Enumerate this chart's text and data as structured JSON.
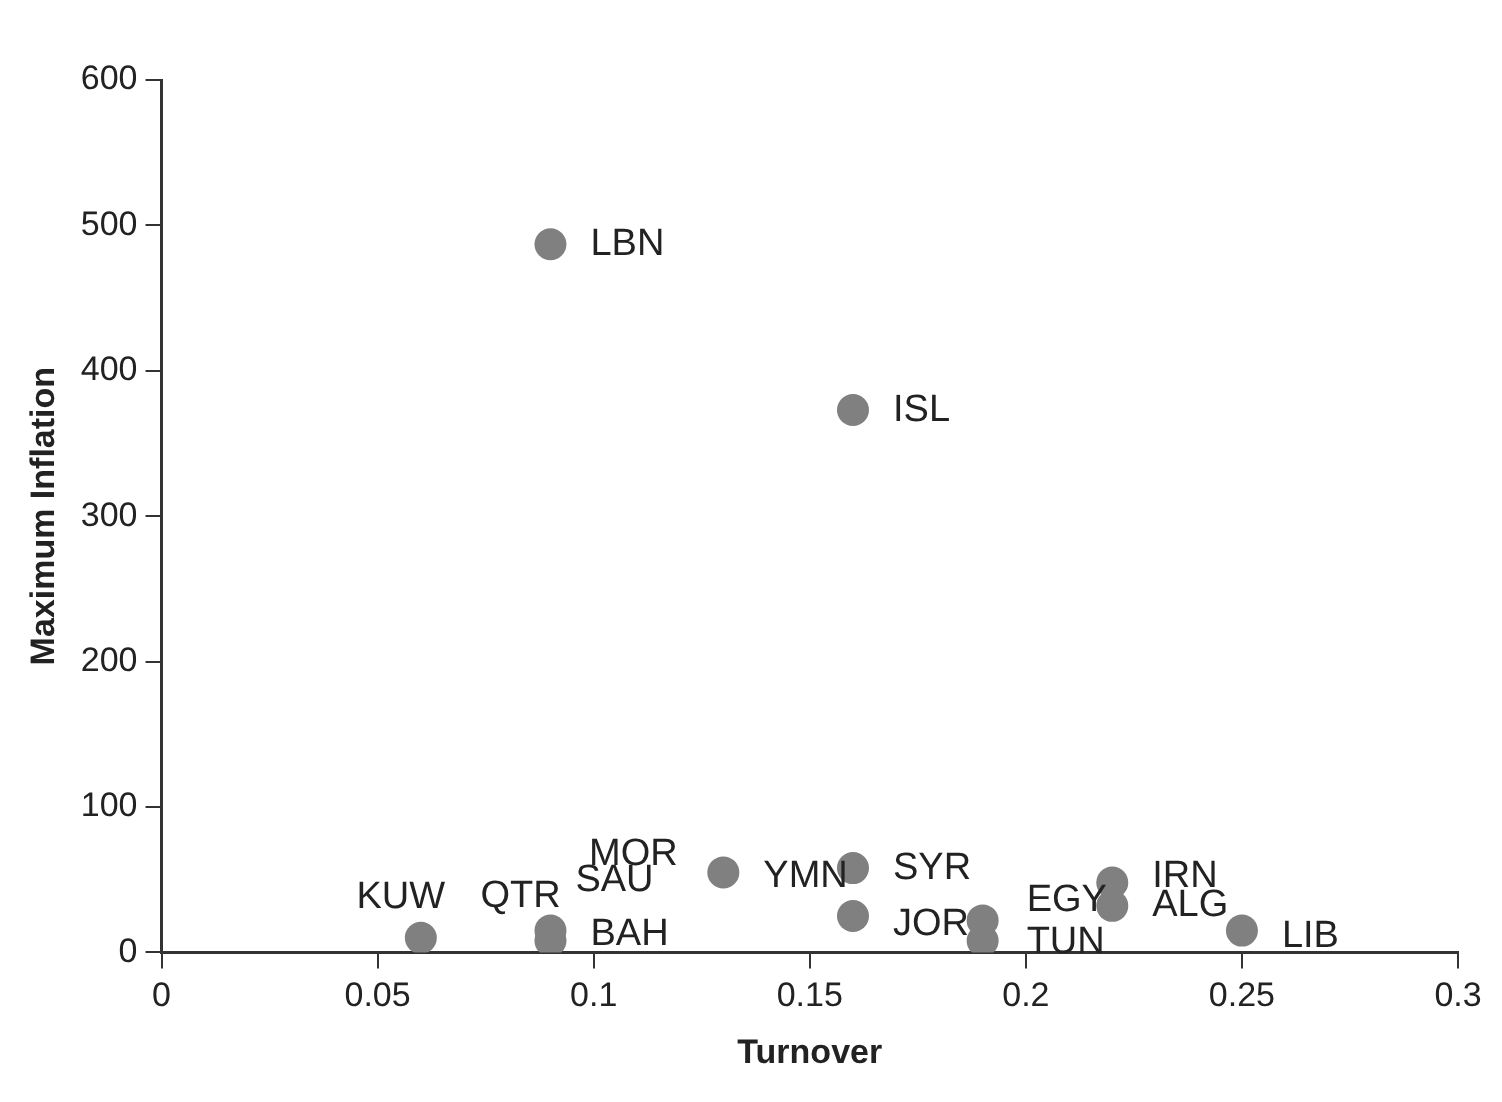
{
  "chart_data": {
    "type": "scatter",
    "xlabel": "Turnover",
    "ylabel": "Maximum Inflation",
    "xlim": [
      0,
      0.3
    ],
    "xticks": [
      0,
      0.05,
      0.1,
      0.15,
      0.2,
      0.25,
      0.3
    ],
    "ylim": [
      0,
      600
    ],
    "yticks": [
      0,
      100,
      200,
      300,
      400,
      500,
      600
    ],
    "grid": false,
    "legend": false,
    "marker": "circle",
    "series": [
      {
        "color": "#808080",
        "x": [
          0.09,
          0.16,
          0.06,
          0.09,
          0.09,
          0.13,
          0.16,
          0.16,
          0.19,
          0.19,
          0.22,
          0.22,
          0.25
        ],
        "values": [
          487,
          373,
          10,
          15,
          8,
          55,
          58,
          25,
          22,
          8,
          48,
          32,
          15
        ]
      }
    ],
    "annotations": [
      {
        "text": "LBN",
        "x": 0.09,
        "y": 487
      },
      {
        "text": "ISL",
        "x": 0.16,
        "y": 373
      },
      {
        "text": "KUW",
        "x": 0.06,
        "y": 10
      },
      {
        "text": "QTR",
        "x": 0.09,
        "y": 15
      },
      {
        "text": "SAU",
        "x": 0.09,
        "y": 15
      },
      {
        "text": "BAH",
        "x": 0.09,
        "y": 8
      },
      {
        "text": "MOR",
        "x": 0.13,
        "y": 55
      },
      {
        "text": "YMN",
        "x": 0.13,
        "y": 55
      },
      {
        "text": "SYR",
        "x": 0.16,
        "y": 58
      },
      {
        "text": "JOR",
        "x": 0.16,
        "y": 25
      },
      {
        "text": "EGY",
        "x": 0.19,
        "y": 22
      },
      {
        "text": "TUN",
        "x": 0.19,
        "y": 8
      },
      {
        "text": "IRN",
        "x": 0.22,
        "y": 48
      },
      {
        "text": "ALG",
        "x": 0.22,
        "y": 32
      },
      {
        "text": "LIB",
        "x": 0.25,
        "y": 15
      }
    ]
  }
}
